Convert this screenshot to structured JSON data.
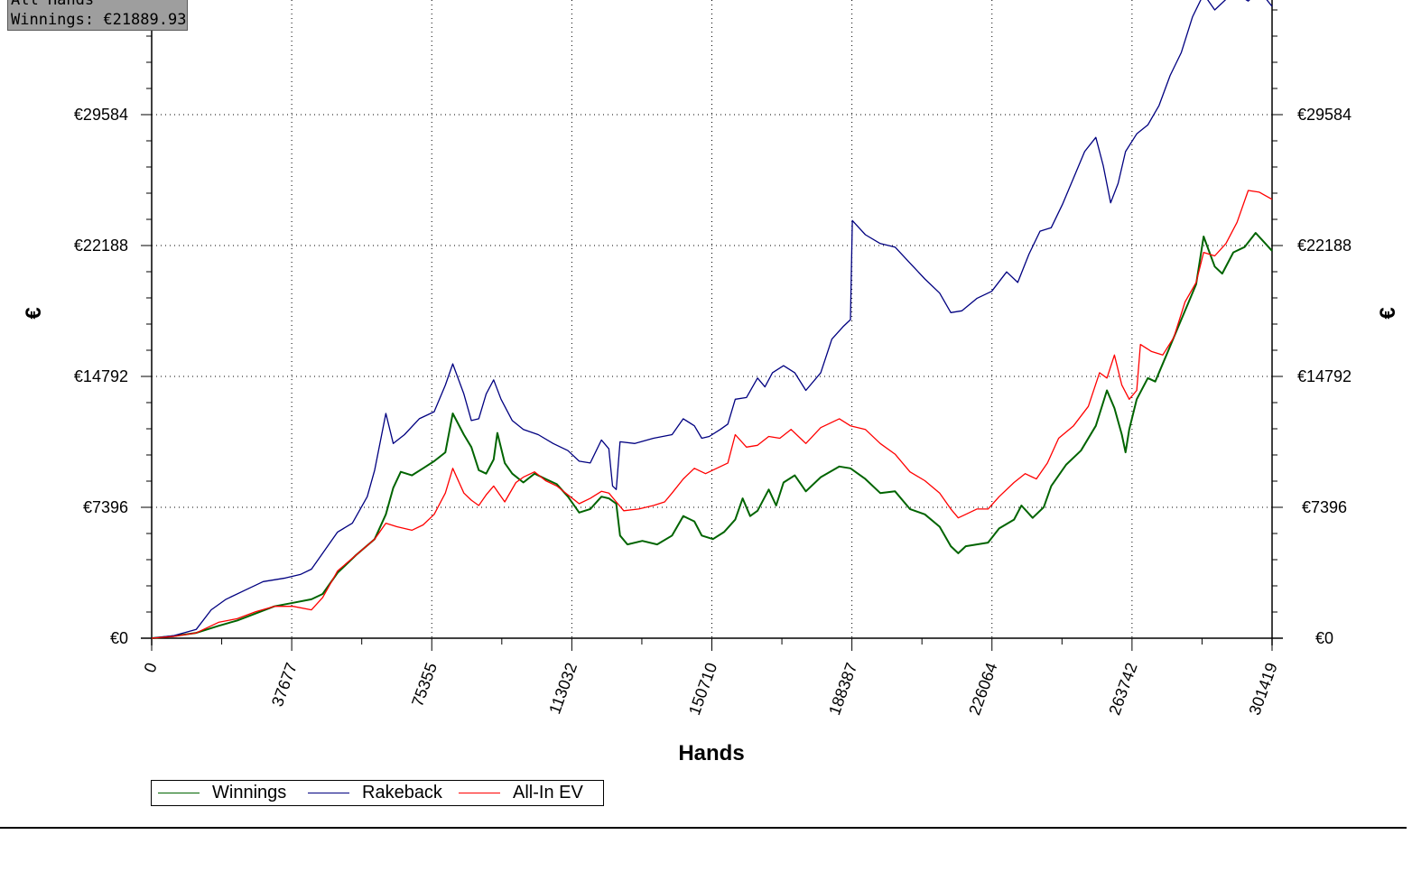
{
  "info_box": {
    "line1": "All Hands",
    "line2": "Winnings: €21889.93"
  },
  "chart_data": {
    "type": "line",
    "xlabel": "Hands",
    "ylabel": "€",
    "xlim": [
      0,
      301419
    ],
    "ylim": [
      0,
      35000
    ],
    "x_ticks": [
      "0",
      "37677",
      "75355",
      "113032",
      "150710",
      "188387",
      "226064",
      "263742",
      "301419"
    ],
    "y_ticks": [
      "€0",
      "€7396",
      "€14792",
      "€22188",
      "€29584"
    ],
    "grid": true,
    "legend_position": "bottom-left",
    "series": [
      {
        "name": "Winnings",
        "color": "#006400",
        "points": [
          [
            0,
            0
          ],
          [
            6000,
            120
          ],
          [
            12000,
            300
          ],
          [
            18000,
            700
          ],
          [
            23000,
            1000
          ],
          [
            28000,
            1400
          ],
          [
            33000,
            1800
          ],
          [
            38000,
            2000
          ],
          [
            43000,
            2200
          ],
          [
            46000,
            2500
          ],
          [
            50000,
            3700
          ],
          [
            55000,
            4700
          ],
          [
            60000,
            5600
          ],
          [
            63000,
            7000
          ],
          [
            65000,
            8500
          ],
          [
            67000,
            9400
          ],
          [
            70000,
            9200
          ],
          [
            73000,
            9600
          ],
          [
            76000,
            10000
          ],
          [
            79000,
            10500
          ],
          [
            81000,
            12700
          ],
          [
            84000,
            11500
          ],
          [
            86000,
            10800
          ],
          [
            88000,
            9500
          ],
          [
            90000,
            9300
          ],
          [
            92000,
            10100
          ],
          [
            93000,
            11600
          ],
          [
            95000,
            9900
          ],
          [
            97000,
            9300
          ],
          [
            100000,
            8800
          ],
          [
            103000,
            9300
          ],
          [
            106000,
            9000
          ],
          [
            109000,
            8700
          ],
          [
            112000,
            8000
          ],
          [
            115000,
            7100
          ],
          [
            118000,
            7300
          ],
          [
            121000,
            8000
          ],
          [
            123000,
            7900
          ],
          [
            125000,
            7600
          ],
          [
            126000,
            5800
          ],
          [
            128000,
            5300
          ],
          [
            132000,
            5500
          ],
          [
            136000,
            5300
          ],
          [
            140000,
            5800
          ],
          [
            143000,
            6900
          ],
          [
            146000,
            6600
          ],
          [
            148000,
            5800
          ],
          [
            151000,
            5600
          ],
          [
            154000,
            6000
          ],
          [
            157000,
            6700
          ],
          [
            159000,
            7900
          ],
          [
            161000,
            6900
          ],
          [
            163000,
            7200
          ],
          [
            166000,
            8400
          ],
          [
            168000,
            7500
          ],
          [
            170000,
            8800
          ],
          [
            173000,
            9200
          ],
          [
            176000,
            8300
          ],
          [
            180000,
            9100
          ],
          [
            185000,
            9700
          ],
          [
            188000,
            9600
          ],
          [
            192000,
            9000
          ],
          [
            196000,
            8200
          ],
          [
            200000,
            8300
          ],
          [
            204000,
            7300
          ],
          [
            208000,
            7000
          ],
          [
            212000,
            6300
          ],
          [
            215000,
            5200
          ],
          [
            217000,
            4800
          ],
          [
            219000,
            5200
          ],
          [
            222000,
            5300
          ],
          [
            225000,
            5400
          ],
          [
            228000,
            6200
          ],
          [
            232000,
            6700
          ],
          [
            234000,
            7500
          ],
          [
            237000,
            6800
          ],
          [
            240000,
            7400
          ],
          [
            242000,
            8600
          ],
          [
            246000,
            9800
          ],
          [
            250000,
            10600
          ],
          [
            254000,
            12000
          ],
          [
            257000,
            14000
          ],
          [
            259000,
            13000
          ],
          [
            261000,
            11500
          ],
          [
            262000,
            10500
          ],
          [
            263000,
            11800
          ],
          [
            265000,
            13500
          ],
          [
            268000,
            14700
          ],
          [
            270000,
            14500
          ],
          [
            273000,
            16000
          ],
          [
            276000,
            17500
          ],
          [
            279000,
            19000
          ],
          [
            281000,
            20000
          ],
          [
            283000,
            22700
          ],
          [
            286000,
            21000
          ],
          [
            288000,
            20600
          ],
          [
            291000,
            21800
          ],
          [
            294000,
            22100
          ],
          [
            297000,
            22900
          ],
          [
            301419,
            21889
          ]
        ]
      },
      {
        "name": "Rakeback",
        "color": "#000080",
        "points": [
          [
            0,
            0
          ],
          [
            6000,
            150
          ],
          [
            12000,
            500
          ],
          [
            16000,
            1600
          ],
          [
            20000,
            2200
          ],
          [
            25000,
            2700
          ],
          [
            30000,
            3200
          ],
          [
            36000,
            3400
          ],
          [
            40000,
            3600
          ],
          [
            43000,
            3900
          ],
          [
            46000,
            4800
          ],
          [
            50000,
            6000
          ],
          [
            54000,
            6500
          ],
          [
            58000,
            8000
          ],
          [
            60000,
            9500
          ],
          [
            63000,
            12700
          ],
          [
            65000,
            11000
          ],
          [
            68000,
            11500
          ],
          [
            72000,
            12400
          ],
          [
            76000,
            12800
          ],
          [
            79000,
            14300
          ],
          [
            81000,
            15500
          ],
          [
            84000,
            13800
          ],
          [
            86000,
            12300
          ],
          [
            88000,
            12400
          ],
          [
            90000,
            13800
          ],
          [
            92000,
            14600
          ],
          [
            94000,
            13500
          ],
          [
            97000,
            12300
          ],
          [
            100000,
            11800
          ],
          [
            104000,
            11500
          ],
          [
            108000,
            11000
          ],
          [
            112000,
            10600
          ],
          [
            115000,
            10000
          ],
          [
            118000,
            9900
          ],
          [
            121000,
            11200
          ],
          [
            123000,
            10700
          ],
          [
            124000,
            8600
          ],
          [
            125000,
            8400
          ],
          [
            126000,
            11100
          ],
          [
            130000,
            11000
          ],
          [
            135000,
            11300
          ],
          [
            140000,
            11500
          ],
          [
            143000,
            12400
          ],
          [
            146000,
            12000
          ],
          [
            148000,
            11300
          ],
          [
            150000,
            11400
          ],
          [
            153000,
            11800
          ],
          [
            155000,
            12100
          ],
          [
            157000,
            13500
          ],
          [
            160000,
            13600
          ],
          [
            163000,
            14700
          ],
          [
            165000,
            14200
          ],
          [
            167000,
            15000
          ],
          [
            170000,
            15400
          ],
          [
            173000,
            15000
          ],
          [
            176000,
            14000
          ],
          [
            180000,
            15000
          ],
          [
            183000,
            16900
          ],
          [
            186000,
            17600
          ],
          [
            188000,
            18000
          ],
          [
            188500,
            23600
          ],
          [
            192000,
            22800
          ],
          [
            196000,
            22300
          ],
          [
            200000,
            22100
          ],
          [
            204000,
            21200
          ],
          [
            208000,
            20300
          ],
          [
            212000,
            19500
          ],
          [
            215000,
            18400
          ],
          [
            218000,
            18500
          ],
          [
            222000,
            19200
          ],
          [
            226000,
            19600
          ],
          [
            230000,
            20700
          ],
          [
            233000,
            20100
          ],
          [
            236000,
            21700
          ],
          [
            239000,
            23000
          ],
          [
            242000,
            23200
          ],
          [
            245000,
            24500
          ],
          [
            248000,
            26000
          ],
          [
            251000,
            27500
          ],
          [
            254000,
            28300
          ],
          [
            256000,
            26700
          ],
          [
            258000,
            24600
          ],
          [
            260000,
            25700
          ],
          [
            262000,
            27500
          ],
          [
            265000,
            28500
          ],
          [
            268000,
            29000
          ],
          [
            271000,
            30100
          ],
          [
            274000,
            31800
          ],
          [
            277000,
            33100
          ],
          [
            280000,
            35100
          ],
          [
            283000,
            36400
          ],
          [
            286000,
            35500
          ],
          [
            289000,
            36100
          ],
          [
            292000,
            36400
          ],
          [
            295000,
            36000
          ],
          [
            298000,
            36600
          ],
          [
            301419,
            35700
          ]
        ]
      },
      {
        "name": "All-In EV",
        "color": "#ff0000",
        "points": [
          [
            0,
            0
          ],
          [
            6000,
            100
          ],
          [
            12000,
            300
          ],
          [
            18000,
            900
          ],
          [
            23000,
            1100
          ],
          [
            28000,
            1500
          ],
          [
            33000,
            1800
          ],
          [
            38000,
            1800
          ],
          [
            43000,
            1600
          ],
          [
            46000,
            2300
          ],
          [
            50000,
            3800
          ],
          [
            55000,
            4700
          ],
          [
            60000,
            5600
          ],
          [
            63000,
            6500
          ],
          [
            66000,
            6300
          ],
          [
            70000,
            6100
          ],
          [
            73000,
            6400
          ],
          [
            76000,
            7000
          ],
          [
            79000,
            8200
          ],
          [
            81000,
            9600
          ],
          [
            84000,
            8200
          ],
          [
            86000,
            7800
          ],
          [
            88000,
            7500
          ],
          [
            90000,
            8100
          ],
          [
            92000,
            8600
          ],
          [
            95000,
            7700
          ],
          [
            98000,
            8800
          ],
          [
            100000,
            9100
          ],
          [
            103000,
            9400
          ],
          [
            106000,
            8900
          ],
          [
            109000,
            8600
          ],
          [
            112000,
            8100
          ],
          [
            115000,
            7600
          ],
          [
            118000,
            7900
          ],
          [
            121000,
            8300
          ],
          [
            123000,
            8200
          ],
          [
            125000,
            7700
          ],
          [
            127000,
            7200
          ],
          [
            131000,
            7300
          ],
          [
            135000,
            7500
          ],
          [
            138000,
            7700
          ],
          [
            140000,
            8200
          ],
          [
            143000,
            9000
          ],
          [
            146000,
            9600
          ],
          [
            149000,
            9300
          ],
          [
            152000,
            9600
          ],
          [
            155000,
            9900
          ],
          [
            157000,
            11500
          ],
          [
            160000,
            10800
          ],
          [
            163000,
            10900
          ],
          [
            166000,
            11400
          ],
          [
            169000,
            11300
          ],
          [
            172000,
            11800
          ],
          [
            176000,
            11000
          ],
          [
            180000,
            11900
          ],
          [
            185000,
            12400
          ],
          [
            188000,
            12000
          ],
          [
            192000,
            11800
          ],
          [
            196000,
            11000
          ],
          [
            200000,
            10400
          ],
          [
            204000,
            9400
          ],
          [
            208000,
            8900
          ],
          [
            212000,
            8200
          ],
          [
            215000,
            7300
          ],
          [
            217000,
            6800
          ],
          [
            219000,
            7000
          ],
          [
            222000,
            7300
          ],
          [
            225000,
            7300
          ],
          [
            228000,
            8000
          ],
          [
            232000,
            8800
          ],
          [
            235000,
            9300
          ],
          [
            238000,
            9000
          ],
          [
            241000,
            9900
          ],
          [
            244000,
            11300
          ],
          [
            248000,
            12000
          ],
          [
            252000,
            13100
          ],
          [
            255000,
            15000
          ],
          [
            257000,
            14700
          ],
          [
            259000,
            16000
          ],
          [
            261000,
            14300
          ],
          [
            263000,
            13500
          ],
          [
            265000,
            14000
          ],
          [
            266000,
            16600
          ],
          [
            269000,
            16200
          ],
          [
            272000,
            16000
          ],
          [
            275000,
            17000
          ],
          [
            278000,
            19000
          ],
          [
            281000,
            20100
          ],
          [
            283000,
            21800
          ],
          [
            286000,
            21600
          ],
          [
            289000,
            22300
          ],
          [
            292000,
            23500
          ],
          [
            295000,
            25300
          ],
          [
            298000,
            25200
          ],
          [
            301419,
            24800
          ]
        ]
      }
    ]
  }
}
